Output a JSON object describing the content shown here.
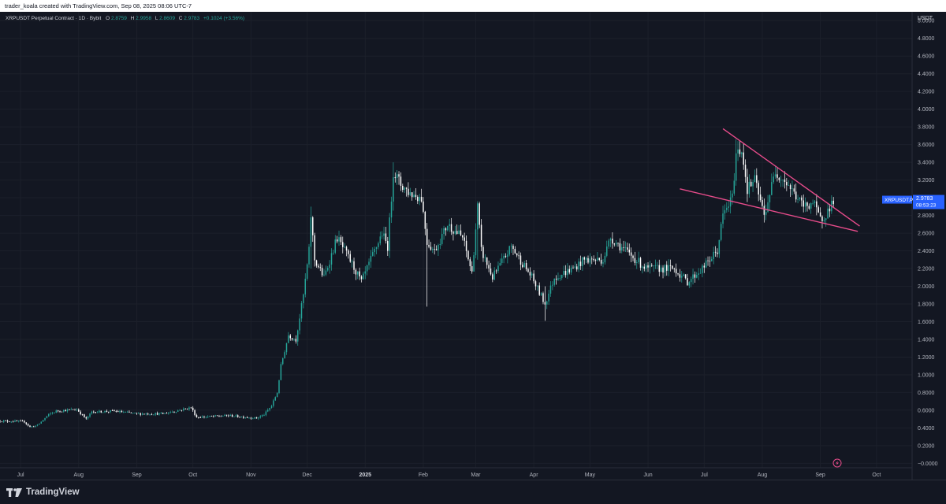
{
  "header": {
    "credit": "trader_koala created with TradingView.com, Sep 08, 2025 08:06 UTC-7"
  },
  "legend": {
    "symbol": "XRPUSDT Perpetual Contract · 1D · Bybit",
    "o_label": "O",
    "o_value": "2.8759",
    "h_label": "H",
    "h_value": "2.9958",
    "l_label": "L",
    "l_value": "2.8609",
    "c_label": "C",
    "c_value": "2.9783",
    "change": "+0.1024 (+3.56%)"
  },
  "price_axis": {
    "currency": "USDT"
  },
  "price_tag": {
    "symbol": "XRPUSDT.P",
    "price": "2.9783",
    "countdown": "08:53:23"
  },
  "footer": {
    "brand": "TradingView"
  },
  "colors": {
    "background": "#131722",
    "candle_up": "#26a69a",
    "candle_down": "#ffffff",
    "trendline": "#e84c8b",
    "tag": "#2962ff",
    "text": "#b2b5be"
  },
  "chart_data": {
    "type": "candlestick",
    "timeframe": "1D",
    "ylim": [
      -0.05,
      5.1
    ],
    "y_ticks": [
      -0.0,
      0.2,
      0.4,
      0.6,
      0.8,
      1.0,
      1.2,
      1.4,
      1.6,
      1.8,
      2.0,
      2.2,
      2.4,
      2.6,
      2.8,
      3.0,
      3.2,
      3.4,
      3.6,
      3.8,
      4.0,
      4.2,
      4.4,
      4.6,
      4.8,
      5.0
    ],
    "y_tick_labels": [
      "−0.0000",
      "0.2000",
      "0.4000",
      "0.6000",
      "0.8000",
      "1.0000",
      "1.2000",
      "1.4000",
      "1.6000",
      "1.8000",
      "2.0000",
      "2.2000",
      "2.4000",
      "2.6000",
      "2.8000",
      "3.0000",
      "3.2000",
      "3.4000",
      "3.6000",
      "3.8000",
      "4.0000",
      "4.2000",
      "4.4000",
      "4.6000",
      "4.8000",
      "5.0000"
    ],
    "x_ticks": [
      {
        "label": "Jul",
        "date": "2024-07-01",
        "bold": false
      },
      {
        "label": "Aug",
        "date": "2024-08-01",
        "bold": false
      },
      {
        "label": "Sep",
        "date": "2024-09-01",
        "bold": false
      },
      {
        "label": "Oct",
        "date": "2024-10-01",
        "bold": false
      },
      {
        "label": "Nov",
        "date": "2024-11-01",
        "bold": false
      },
      {
        "label": "Dec",
        "date": "2024-12-01",
        "bold": false
      },
      {
        "label": "2025",
        "date": "2025-01-01",
        "bold": true
      },
      {
        "label": "Feb",
        "date": "2025-02-01",
        "bold": false
      },
      {
        "label": "Mar",
        "date": "2025-03-01",
        "bold": false
      },
      {
        "label": "Apr",
        "date": "2025-04-01",
        "bold": false
      },
      {
        "label": "May",
        "date": "2025-05-01",
        "bold": false
      },
      {
        "label": "Jun",
        "date": "2025-06-01",
        "bold": false
      },
      {
        "label": "Jul",
        "date": "2025-07-01",
        "bold": false
      },
      {
        "label": "Aug",
        "date": "2025-08-01",
        "bold": false
      },
      {
        "label": "Sep",
        "date": "2025-09-01",
        "bold": false
      },
      {
        "label": "Oct",
        "date": "2025-10-01",
        "bold": false
      }
    ],
    "x_range": [
      "2024-06-20",
      "2025-10-20"
    ],
    "close_path": [
      [
        "2024-06-20",
        0.48
      ],
      [
        "2024-07-03",
        0.47
      ],
      [
        "2024-07-06",
        0.41
      ],
      [
        "2024-07-10",
        0.43
      ],
      [
        "2024-07-16",
        0.55
      ],
      [
        "2024-07-20",
        0.59
      ],
      [
        "2024-07-31",
        0.61
      ],
      [
        "2024-08-05",
        0.5
      ],
      [
        "2024-08-08",
        0.58
      ],
      [
        "2024-08-20",
        0.59
      ],
      [
        "2024-09-01",
        0.56
      ],
      [
        "2024-09-15",
        0.56
      ],
      [
        "2024-09-30",
        0.63
      ],
      [
        "2024-10-03",
        0.52
      ],
      [
        "2024-10-20",
        0.54
      ],
      [
        "2024-11-04",
        0.51
      ],
      [
        "2024-11-08",
        0.55
      ],
      [
        "2024-11-12",
        0.65
      ],
      [
        "2024-11-15",
        0.8
      ],
      [
        "2024-11-17",
        1.1
      ],
      [
        "2024-11-21",
        1.45
      ],
      [
        "2024-11-25",
        1.4
      ],
      [
        "2024-11-29",
        1.9
      ],
      [
        "2024-12-02",
        2.4
      ],
      [
        "2024-12-03",
        2.8
      ],
      [
        "2024-12-05",
        2.3
      ],
      [
        "2024-12-10",
        2.1
      ],
      [
        "2024-12-17",
        2.55
      ],
      [
        "2024-12-25",
        2.25
      ],
      [
        "2024-12-30",
        2.05
      ],
      [
        "2025-01-06",
        2.4
      ],
      [
        "2025-01-10",
        2.6
      ],
      [
        "2025-01-13",
        2.45
      ],
      [
        "2025-01-15",
        3.0
      ],
      [
        "2025-01-16",
        3.3
      ],
      [
        "2025-01-20",
        3.15
      ],
      [
        "2025-01-25",
        3.05
      ],
      [
        "2025-01-31",
        3.0
      ],
      [
        "2025-02-03",
        2.5
      ],
      [
        "2025-02-07",
        2.4
      ],
      [
        "2025-02-14",
        2.7
      ],
      [
        "2025-02-22",
        2.55
      ],
      [
        "2025-02-27",
        2.15
      ],
      [
        "2025-03-02",
        2.9
      ],
      [
        "2025-03-04",
        2.4
      ],
      [
        "2025-03-10",
        2.1
      ],
      [
        "2025-03-20",
        2.45
      ],
      [
        "2025-03-31",
        2.1
      ],
      [
        "2025-04-07",
        1.8
      ],
      [
        "2025-04-12",
        2.1
      ],
      [
        "2025-04-22",
        2.2
      ],
      [
        "2025-04-28",
        2.3
      ],
      [
        "2025-05-08",
        2.3
      ],
      [
        "2025-05-12",
        2.55
      ],
      [
        "2025-05-20",
        2.4
      ],
      [
        "2025-05-31",
        2.2
      ],
      [
        "2025-06-15",
        2.2
      ],
      [
        "2025-06-22",
        2.05
      ],
      [
        "2025-06-30",
        2.2
      ],
      [
        "2025-07-08",
        2.4
      ],
      [
        "2025-07-11",
        2.8
      ],
      [
        "2025-07-16",
        3.0
      ],
      [
        "2025-07-18",
        3.5
      ],
      [
        "2025-07-21",
        3.55
      ],
      [
        "2025-07-24",
        3.1
      ],
      [
        "2025-07-28",
        3.2
      ],
      [
        "2025-08-02",
        2.8
      ],
      [
        "2025-08-08",
        3.3
      ],
      [
        "2025-08-13",
        3.2
      ],
      [
        "2025-08-18",
        3.05
      ],
      [
        "2025-08-23",
        2.9
      ],
      [
        "2025-08-28",
        2.95
      ],
      [
        "2025-09-01",
        2.75
      ],
      [
        "2025-09-05",
        2.85
      ],
      [
        "2025-09-08",
        2.98
      ]
    ],
    "wicks": [
      {
        "date": "2024-12-03",
        "high": 2.9,
        "low": 2.2
      },
      {
        "date": "2025-01-16",
        "high": 3.4,
        "low": 3.0
      },
      {
        "date": "2025-02-03",
        "high": 2.6,
        "low": 1.77
      },
      {
        "date": "2025-03-02",
        "high": 2.95,
        "low": 2.3
      },
      {
        "date": "2025-04-07",
        "high": 2.0,
        "low": 1.61
      },
      {
        "date": "2025-07-18",
        "high": 3.66,
        "low": 3.2
      },
      {
        "date": "2025-08-02",
        "high": 2.95,
        "low": 2.72
      }
    ],
    "trendlines": [
      {
        "start": {
          "date": "2025-07-11",
          "price": 3.78
        },
        "end": {
          "date": "2025-09-22",
          "price": 2.68
        }
      },
      {
        "start": {
          "date": "2025-06-18",
          "price": 3.1
        },
        "end": {
          "date": "2025-09-21",
          "price": 2.62
        }
      }
    ],
    "last_price": 2.9783
  }
}
